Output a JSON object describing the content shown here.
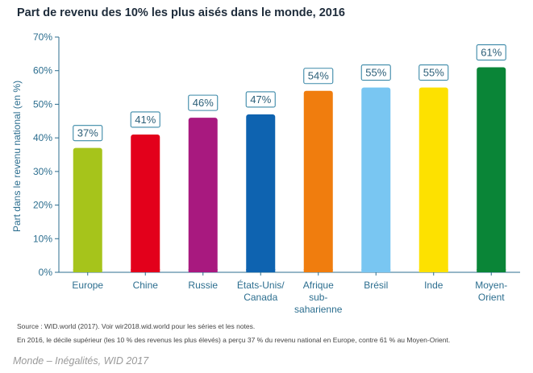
{
  "chart_data": {
    "type": "bar",
    "title": "Part de revenu des 10% les plus aisés dans le monde, 2016",
    "ylabel": "Part dans le revenu national (en %)",
    "xlabel": "",
    "ylim": [
      0,
      70
    ],
    "yticks": [
      0,
      10,
      20,
      30,
      40,
      50,
      60,
      70
    ],
    "ytick_labels": [
      "0%",
      "10%",
      "20%",
      "30%",
      "40%",
      "50%",
      "60%",
      "70%"
    ],
    "categories": [
      [
        "Europe"
      ],
      [
        "Chine"
      ],
      [
        "Russie"
      ],
      [
        "États-Unis/",
        "Canada"
      ],
      [
        "Afrique",
        "sub-",
        "saharienne"
      ],
      [
        "Brésil"
      ],
      [
        "Inde"
      ],
      [
        "Moyen-",
        "Orient"
      ]
    ],
    "values": [
      37,
      41,
      46,
      47,
      54,
      55,
      55,
      61
    ],
    "value_labels": [
      "37%",
      "41%",
      "46%",
      "47%",
      "54%",
      "55%",
      "55%",
      "61%"
    ],
    "colors": [
      "#a6c41b",
      "#e3001b",
      "#a8197f",
      "#0e63b0",
      "#f07d0e",
      "#79c6f2",
      "#fde100",
      "#0a8537"
    ],
    "grid": false
  },
  "footer": {
    "source": "Source : WID.world (2017). Voir wir2018.wid.world pour les séries et les notes.",
    "note": "En 2016, le décile supérieur (les 10 % des revenus les plus élevés) a perçu 37 % du revenu national en Europe, contre 61 % au Moyen-Orient.",
    "credit": "Monde – Inégalités, WID 2017"
  },
  "colors": {
    "axis": "#2c6e8f",
    "label_box_border": "#3b89a8",
    "tick_text": "#2c6e8f"
  }
}
